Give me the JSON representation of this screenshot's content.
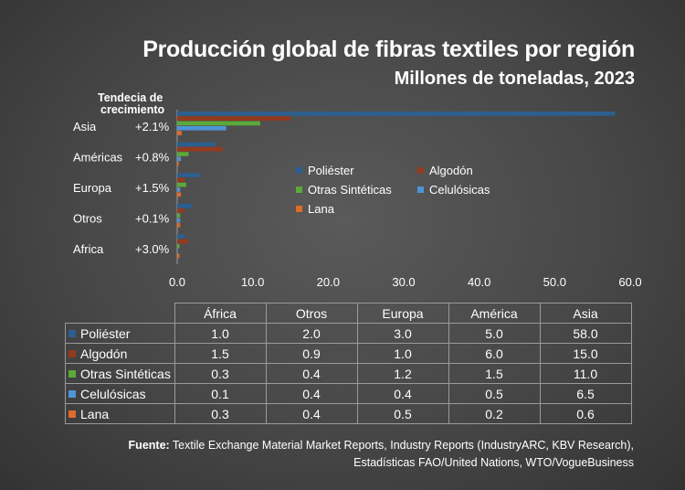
{
  "colors": {
    "poliester": "#2d5f8f",
    "algodon": "#943a1f",
    "sinteticas": "#5aaa3a",
    "celulosicas": "#4f93d6",
    "lana": "#e06a2a"
  },
  "chart_data": {
    "type": "bar",
    "orientation": "horizontal",
    "title": "Producción global de fibras textiles por región",
    "subtitle": "Millones de toneladas, 2023",
    "categories": [
      "Asia",
      "Américas",
      "Europa",
      "Otros",
      "Africa"
    ],
    "trend_header": "Tendecia de crecimiento",
    "trends": [
      "+2.1%",
      "+0.8%",
      "+1.5%",
      "+0.1%",
      "+3.0%"
    ],
    "series": [
      {
        "name": "Poliéster",
        "values": [
          58.0,
          5.0,
          3.0,
          2.0,
          1.0
        ]
      },
      {
        "name": "Algodón",
        "values": [
          15.0,
          6.0,
          1.0,
          0.9,
          1.5
        ]
      },
      {
        "name": "Otras Sintéticas",
        "values": [
          11.0,
          1.5,
          1.2,
          0.4,
          0.3
        ]
      },
      {
        "name": "Celulósicas",
        "values": [
          6.5,
          0.5,
          0.4,
          0.4,
          0.1
        ]
      },
      {
        "name": "Lana",
        "values": [
          0.6,
          0.2,
          0.5,
          0.4,
          0.3
        ]
      }
    ],
    "xlim": [
      0,
      60
    ],
    "xticks": [
      "0.0",
      "10.0",
      "20.0",
      "30.0",
      "40.0",
      "50.0",
      "60.0"
    ],
    "legend_position": "center-right",
    "grid": false
  },
  "table": {
    "columns": [
      "África",
      "Otros",
      "Europa",
      "América",
      "Asia"
    ],
    "rows": [
      {
        "label": "Poliéster",
        "values": [
          "1.0",
          "2.0",
          "3.0",
          "5.0",
          "58.0"
        ]
      },
      {
        "label": "Algodón",
        "values": [
          "1.5",
          "0.9",
          "1.0",
          "6.0",
          "15.0"
        ]
      },
      {
        "label": "Otras Sintéticas",
        "values": [
          "0.3",
          "0.4",
          "1.2",
          "1.5",
          "11.0"
        ]
      },
      {
        "label": "Celulósicas",
        "values": [
          "0.1",
          "0.4",
          "0.4",
          "0.5",
          "6.5"
        ]
      },
      {
        "label": "Lana",
        "values": [
          "0.3",
          "0.4",
          "0.5",
          "0.2",
          "0.6"
        ]
      }
    ]
  },
  "source": {
    "label": "Fuente:",
    "line1": " Textile Exchange Material Market Reports,  Industry Reports (IndustryARC, KBV Research),",
    "line2": "Estadísticas FAO/United Nations, WTO/VogueBusiness"
  }
}
